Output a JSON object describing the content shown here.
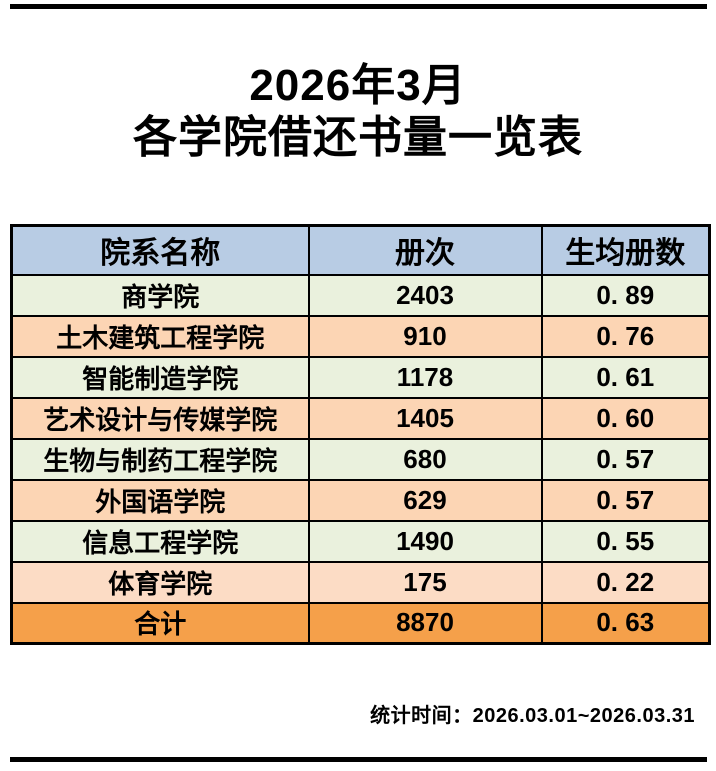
{
  "page": {
    "title_line1": "2026年3月",
    "title_line2": "各学院借还书量一览表",
    "footer_note": "统计时间：2026.03.01~2026.03.31"
  },
  "table": {
    "headers": {
      "department": "院系名称",
      "volumes": "册次",
      "per_student": "生均册数"
    },
    "rows": [
      {
        "name": "商学院",
        "volumes": "2403",
        "per_student": "0. 89"
      },
      {
        "name": "土木建筑工程学院",
        "volumes": "910",
        "per_student": "0. 76"
      },
      {
        "name": "智能制造学院",
        "volumes": "1178",
        "per_student": "0. 61"
      },
      {
        "name": "艺术设计与传媒学院",
        "volumes": "1405",
        "per_student": "0. 60"
      },
      {
        "name": "生物与制药工程学院",
        "volumes": "680",
        "per_student": "0. 57"
      },
      {
        "name": "外国语学院",
        "volumes": "629",
        "per_student": "0. 57"
      },
      {
        "name": "信息工程学院",
        "volumes": "1490",
        "per_student": "0. 55"
      },
      {
        "name": "体育学院",
        "volumes": "175",
        "per_student": "0. 22"
      }
    ],
    "total_row": {
      "name": "合计",
      "volumes": "8870",
      "per_student": "0. 63"
    }
  },
  "colors": {
    "header_blue": "#B8CCE4",
    "row_green": "#EAF1DD",
    "row_orange": "#FCD5B4",
    "row_light_orange": "#FCDCC5",
    "total_orange": "#F5A04A",
    "border_black": "#000000"
  }
}
